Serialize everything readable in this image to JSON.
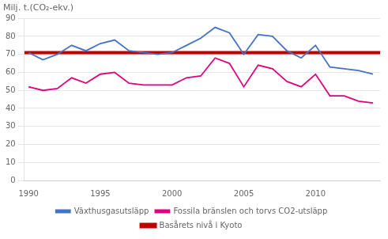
{
  "chart_data": {
    "type": "line",
    "ylabel": "Milj. t.(CO₂-ekv.)",
    "x": [
      1990,
      1991,
      1992,
      1993,
      1994,
      1995,
      1996,
      1997,
      1998,
      1999,
      2000,
      2001,
      2002,
      2003,
      2004,
      2005,
      2006,
      2007,
      2008,
      2009,
      2010,
      2011,
      2012,
      2013,
      2014
    ],
    "series": [
      {
        "name": "Växthusgasutsläpp",
        "color": "#4472C4",
        "values": [
          71,
          67,
          70,
          75,
          72,
          76,
          78,
          72,
          71,
          70,
          71,
          75,
          79,
          85,
          82,
          70,
          81,
          80,
          72,
          68,
          75,
          63,
          62,
          61,
          59
        ]
      },
      {
        "name": "Basårets nivå i Kyoto",
        "color": "#C00000",
        "type": "hline",
        "y": 71
      },
      {
        "name": "Fossila bränslen och torvs CO2-utsläpp",
        "color": "#E0007F",
        "values": [
          52,
          50,
          51,
          57,
          54,
          59,
          60,
          54,
          53,
          53,
          53,
          57,
          58,
          68,
          65,
          52,
          64,
          62,
          55,
          52,
          59,
          47,
          47,
          44,
          43
        ]
      }
    ],
    "xlim": [
      1989.7,
      2014.5
    ],
    "xticks": [
      1990,
      1995,
      2000,
      2005,
      2010
    ],
    "ylim": [
      0,
      90
    ],
    "yticks": [
      0,
      10,
      20,
      30,
      40,
      50,
      60,
      70,
      80,
      90
    ],
    "grid": "y",
    "legend": "bottom"
  }
}
